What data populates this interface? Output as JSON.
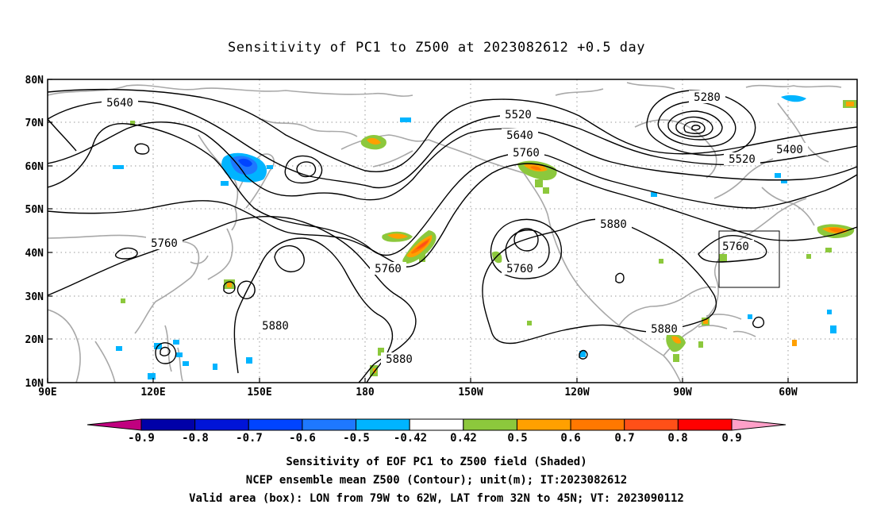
{
  "title": "Sensitivity of PC1 to Z500 at 2023082612 +0.5 day",
  "lat_labels": [
    "80N",
    "70N",
    "60N",
    "50N",
    "40N",
    "30N",
    "20N",
    "10N"
  ],
  "lon_labels": [
    "90E",
    "120E",
    "150E",
    "180",
    "150W",
    "120W",
    "90W",
    "60W"
  ],
  "contour_labels": [
    "5640",
    "5520",
    "5640",
    "5760",
    "5280",
    "5400",
    "5520",
    "5760",
    "5760",
    "5880",
    "5760",
    "5760",
    "5880",
    "5880",
    "5880"
  ],
  "colorbar": {
    "colors": [
      "#c0007f",
      "#0000a8",
      "#0014d8",
      "#0044ff",
      "#1e78ff",
      "#00b4ff",
      "#ffffff",
      "#8cc83c",
      "#ffa000",
      "#ff7800",
      "#ff5018",
      "#ff0000",
      "#ffa0c8"
    ],
    "tick_labels": [
      "-0.9",
      "-0.8",
      "-0.7",
      "-0.6",
      "-0.5",
      "-0.42",
      "0.42",
      "0.5",
      "0.6",
      "0.7",
      "0.8",
      "0.9"
    ]
  },
  "captions": [
    "Sensitivity of EOF PC1 to Z500 field (Shaded)",
    "NCEP ensemble mean Z500 (Contour); unit(m); IT:2023082612",
    "Valid area (box): LON from 79W to 62W, LAT from 32N to 45N; VT: 2023090112"
  ],
  "valid_box": {
    "lon_min": -79,
    "lon_max": -62,
    "lat_min": 32,
    "lat_max": 45
  }
}
